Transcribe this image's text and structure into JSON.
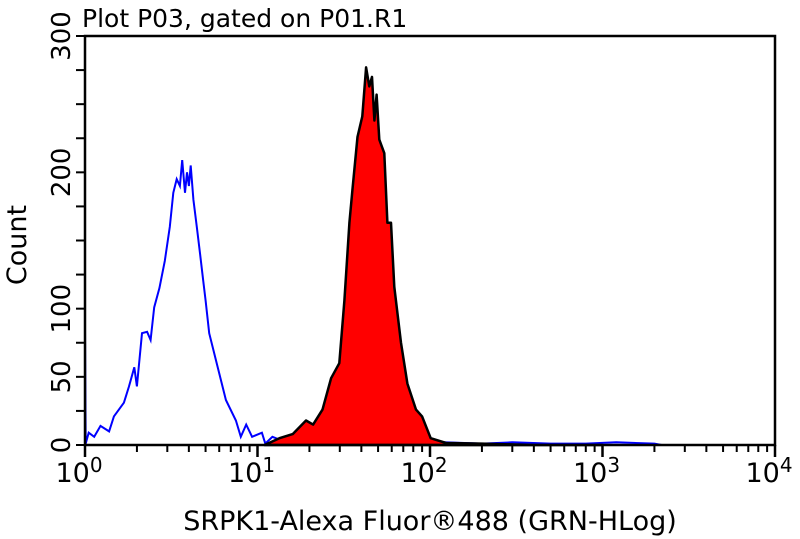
{
  "chart_data": {
    "type": "area",
    "title": "Plot P03, gated on P01.R1",
    "xlabel": "SRPK1-Alexa Fluor®488 (GRN-HLog)",
    "ylabel": "Count",
    "xscale": "log",
    "xlim": [
      1,
      10000
    ],
    "ylim": [
      0,
      300
    ],
    "grid": false,
    "legend": "none",
    "x_ticks": [
      {
        "value": 1,
        "base": "10",
        "exp": "0"
      },
      {
        "value": 10,
        "base": "10",
        "exp": "1"
      },
      {
        "value": 100,
        "base": "10",
        "exp": "2"
      },
      {
        "value": 1000,
        "base": "10",
        "exp": "3"
      },
      {
        "value": 10000,
        "base": "10",
        "exp": "4"
      }
    ],
    "y_ticks": [
      {
        "value": 0,
        "label": "0"
      },
      {
        "value": 50,
        "label": "50"
      },
      {
        "value": 100,
        "label": "100"
      },
      {
        "value": 200,
        "label": "200"
      },
      {
        "value": 300,
        "label": "300"
      }
    ],
    "y_minor_step": 25,
    "series": [
      {
        "style": "outline",
        "color": "#0000ff",
        "x": [
          1.0,
          1.0,
          1.01,
          1.05,
          1.13,
          1.23,
          1.38,
          1.47,
          1.68,
          1.8,
          1.93,
          2.0,
          2.14,
          2.29,
          2.4,
          2.52,
          2.7,
          2.9,
          3.1,
          3.25,
          3.4,
          3.55,
          3.66,
          3.8,
          3.9,
          4.0,
          4.1,
          4.25,
          4.45,
          4.65,
          4.85,
          5.0,
          5.25,
          5.8,
          6.56,
          7.5,
          8.0,
          8.6,
          9.3,
          10.6,
          11.1,
          12.2,
          14,
          17,
          20,
          30,
          50,
          80,
          120,
          200,
          300,
          500,
          800,
          1200,
          2000,
          2200,
          3000
        ],
        "y": [
          0,
          86,
          1,
          9,
          6,
          14,
          10,
          21,
          31,
          43,
          57,
          43,
          82,
          83,
          77,
          101,
          115,
          135,
          160,
          185,
          195,
          190,
          209,
          185,
          200,
          190,
          205,
          180,
          160,
          140,
          120,
          106,
          82,
          60,
          33,
          18,
          6,
          15,
          6,
          9,
          1,
          6,
          3,
          2,
          1,
          2,
          1,
          1,
          2,
          1,
          2,
          1,
          1,
          2,
          1,
          0,
          0
        ]
      },
      {
        "style": "filled",
        "color": "#ff0000",
        "outline": "#000000",
        "x": [
          11,
          13.4,
          16,
          19.1,
          21,
          23.8,
          26.7,
          29.8,
          31.9,
          34.1,
          35.5,
          38,
          40.5,
          42.6,
          44.5,
          46.1,
          47.6,
          49,
          50.8,
          54.3,
          56.6,
          59.4,
          62.1,
          67.9,
          74,
          83,
          90,
          101,
          124,
          200,
          400,
          1000
        ],
        "y": [
          0,
          5,
          8,
          18,
          15,
          26,
          49,
          60,
          106,
          163,
          187,
          226,
          241,
          277,
          263,
          270,
          238,
          257,
          224,
          214,
          163,
          163,
          116,
          75,
          45,
          26,
          21,
          5,
          1.5,
          1,
          0,
          0
        ]
      }
    ]
  }
}
